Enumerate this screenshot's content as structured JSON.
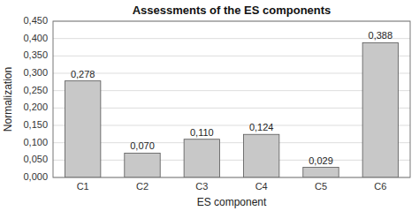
{
  "chart_data": {
    "type": "bar",
    "title": "Assessments of the ES components",
    "xlabel": "ES component",
    "ylabel": "Normalization",
    "categories": [
      "C1",
      "C2",
      "C3",
      "C4",
      "C5",
      "C6"
    ],
    "values": [
      0.278,
      0.07,
      0.11,
      0.124,
      0.029,
      0.388
    ],
    "value_labels": [
      "0,278",
      "0,070",
      "0,110",
      "0,124",
      "0,029",
      "0,388"
    ],
    "data_labels": true,
    "color": "#c8c8c8",
    "ylim": [
      0,
      0.45
    ],
    "yticks": [
      {
        "value": 0.0,
        "label": "0,000"
      },
      {
        "value": 0.05,
        "label": "0,050"
      },
      {
        "value": 0.1,
        "label": "0,100"
      },
      {
        "value": 0.15,
        "label": "0,150"
      },
      {
        "value": 0.2,
        "label": "0,200"
      },
      {
        "value": 0.25,
        "label": "0,250"
      },
      {
        "value": 0.3,
        "label": "0,300"
      },
      {
        "value": 0.35,
        "label": "0,350"
      },
      {
        "value": 0.4,
        "label": "0,400"
      },
      {
        "value": 0.45,
        "label": "0,450"
      }
    ],
    "grid": true
  }
}
